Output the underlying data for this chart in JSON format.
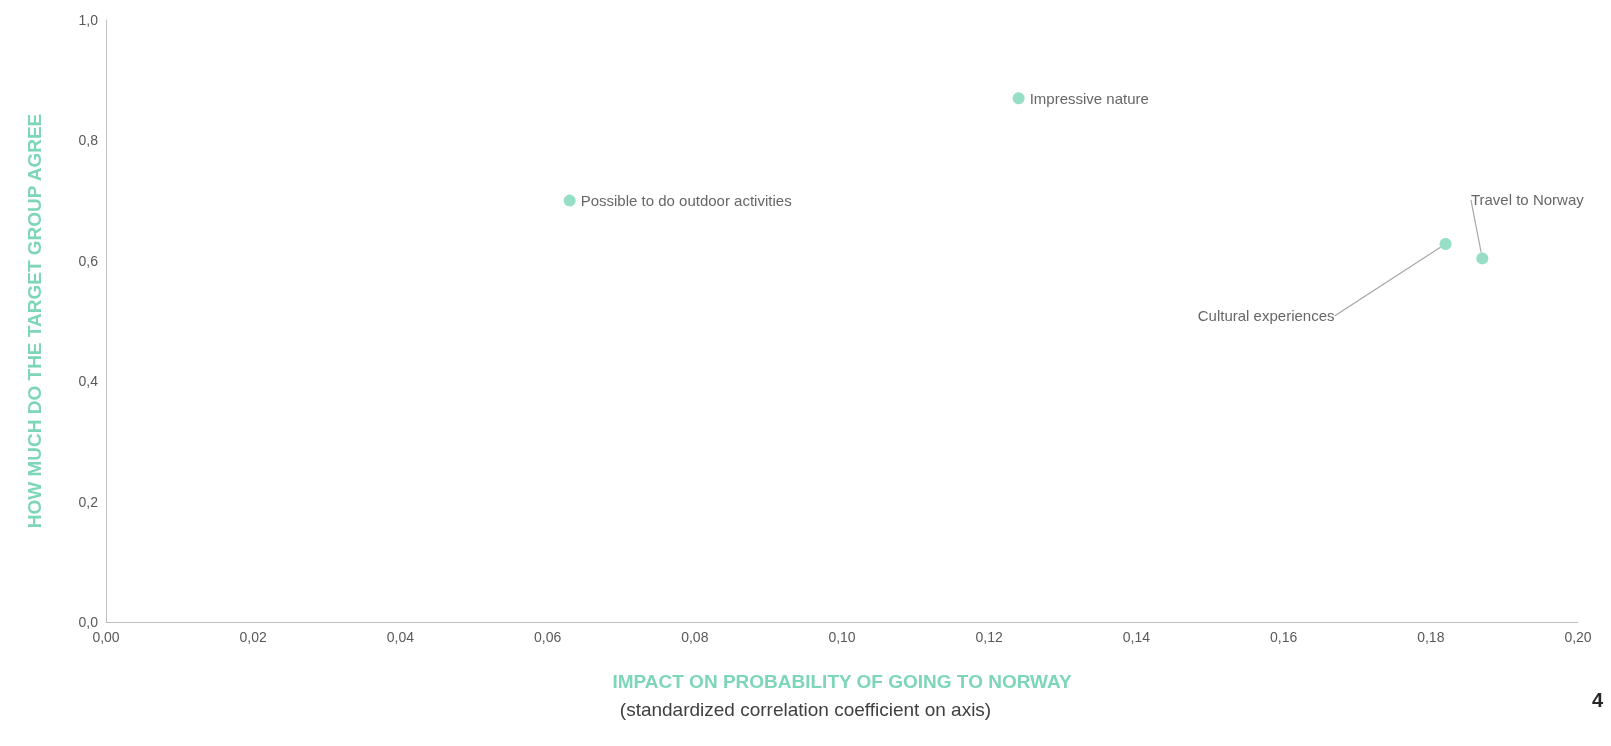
{
  "chart_data": {
    "type": "scatter",
    "xlabel": "IMPACT ON PROBABILITY OF GOING TO NORWAY",
    "ylabel": "HOW MUCH DO THE TARGET GROUP AGREE",
    "series": [
      {
        "name": "Impressive nature",
        "color": "#7dd6b8",
        "x": [
          0.124
        ],
        "values": [
          0.87
        ]
      },
      {
        "name": "Possible to do outdoor activities",
        "color": "#7dd6b8",
        "x": [
          0.063
        ],
        "values": [
          0.7
        ]
      },
      {
        "name": "Cultural experiences",
        "color": "#7dd6b8",
        "x": [
          0.182
        ],
        "values": [
          0.628
        ]
      },
      {
        "name": "Travel to Norway",
        "color": "#7dd6b8",
        "x": [
          0.187
        ],
        "values": [
          0.604
        ]
      }
    ],
    "xlim": [
      0,
      0.2
    ],
    "xticks": [
      {
        "value": 0,
        "label": "0,00"
      },
      {
        "value": 0.02,
        "label": "0,02"
      },
      {
        "value": 0.04,
        "label": "0,04"
      },
      {
        "value": 0.06,
        "label": "0,06"
      },
      {
        "value": 0.08,
        "label": "0,08"
      },
      {
        "value": 0.1,
        "label": "0,10"
      },
      {
        "value": 0.12,
        "label": "0,12"
      },
      {
        "value": 0.14,
        "label": "0,14"
      },
      {
        "value": 0.16,
        "label": "0,16"
      },
      {
        "value": 0.18,
        "label": "0,18"
      },
      {
        "value": 0.2,
        "label": "0,20"
      }
    ],
    "ylim": [
      0,
      1
    ],
    "yticks": [
      {
        "value": 0,
        "label": "0,0"
      },
      {
        "value": 0.2,
        "label": "0,2"
      },
      {
        "value": 0.4,
        "label": "0,4"
      },
      {
        "value": 0.6,
        "label": "0,6"
      },
      {
        "value": 0.8,
        "label": "0,8"
      },
      {
        "value": 1,
        "label": "1,0"
      }
    ],
    "grid": false,
    "legend": false,
    "marker": "circle",
    "annotations": [
      "(standardized correlation coefficient on axis)",
      "4"
    ]
  }
}
